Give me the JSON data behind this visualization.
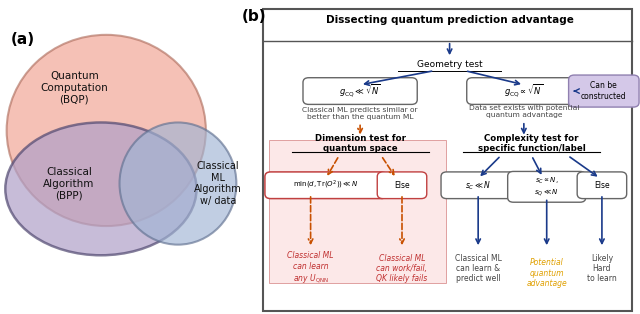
{
  "panel_a_label": "(a)",
  "panel_b_label": "(b)",
  "venn_quantum_label": "Quantum\nComputation\n(BQP)",
  "venn_classical_label": "Classical\nAlgorithm\n(BPP)",
  "venn_ml_label": "Classical\nML\nAlgorithm\nw/ data",
  "title_b": "Dissecting quantum prediction advantage",
  "geometry_test": "Geometry test",
  "gcq_small": "$g_{\\mathrm{CQ}} \\ll \\sqrt{N}$",
  "gcq_large": "$g_{\\mathrm{CQ}} \\propto \\sqrt{N}$",
  "can_be_constructed": "Can be\nconstructed",
  "classical_ml_similar": "Classical ML predicts similar or\nbetter than the quantum ML",
  "dataset_exists": "Data set exists with potential\nquantum advantage",
  "dimension_test": "Dimension test for\nquantum space",
  "complexity_test": "Complexity test for\nspecific function/label",
  "dim_box": "$\\min(d, \\mathrm{Tr}(O^2)) \\ll N$",
  "else1": "Else",
  "sc_small": "$s_C \\ll N$",
  "sc_sq_small": "$s_C \\propto N,$\n$s_Q \\ll N$",
  "else2": "Else",
  "result1": "Classical ML\ncan learn\nany $U_{\\mathrm{QNN}}$",
  "result2": "Classical ML\ncan work/fail,\nQK likely fails",
  "result3": "Classical ML\ncan learn &\npredict well",
  "result4": "Potential\nquantum\nadvantage",
  "result5": "Likely\nHard\nto learn",
  "blue": "#1a3a8a",
  "orange": "#C85000",
  "red_text": "#c03030",
  "gold_text": "#e0a000",
  "dark_gray": "#444444",
  "purple_box_face": "#d4c8e8",
  "purple_box_edge": "#9080b0",
  "red_box_edge": "#c04040",
  "red_bg": "#fce8e8",
  "red_bg_edge": "#e0a0a0",
  "box_edge": "#666666"
}
